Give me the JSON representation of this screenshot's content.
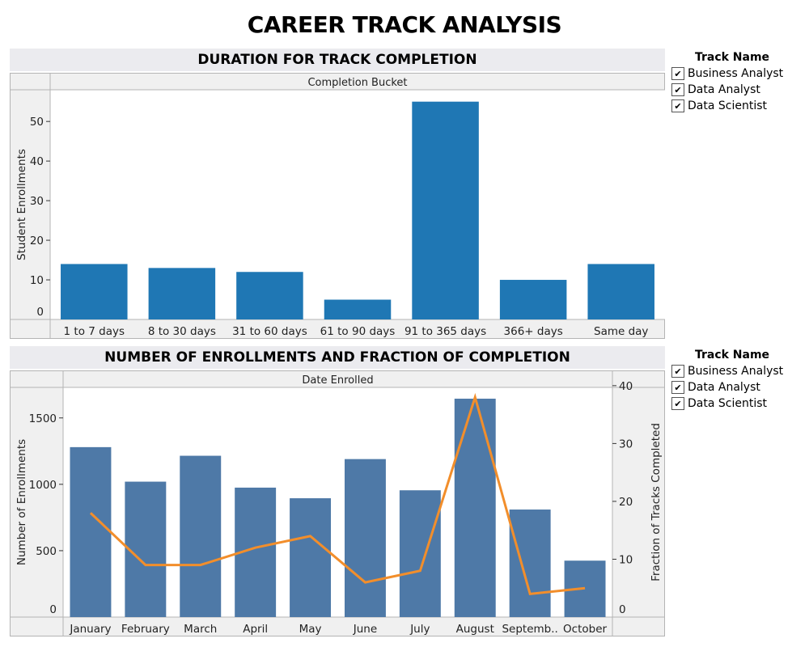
{
  "title": "CAREER TRACK ANALYSIS",
  "legends": [
    {
      "title": "Track Name",
      "items": [
        "Business Analyst",
        "Data Analyst",
        "Data Scientist"
      ]
    },
    {
      "title": "Track Name",
      "items": [
        "Business Analyst",
        "Data Analyst",
        "Data Scientist"
      ]
    }
  ],
  "chart_data": [
    {
      "type": "bar",
      "title": "DURATION FOR TRACK COMPLETION",
      "group_header": "Completion Bucket",
      "ylabel": "Student Enrollments",
      "categories": [
        "1 to 7 days",
        "8 to 30 days",
        "31 to 60 days",
        "61 to 90 days",
        "91 to 365 days",
        "366+ days",
        "Same day"
      ],
      "values": [
        14,
        13,
        12,
        5,
        55,
        10,
        14
      ],
      "yticks": [
        0,
        10,
        20,
        30,
        40,
        50
      ],
      "ylim": [
        0,
        58
      ],
      "color": "#1f77b4",
      "grid": false
    },
    {
      "type": "bar+line",
      "title": "NUMBER OF ENROLLMENTS AND FRACTION OF COMPLETION",
      "group_header": "Date Enrolled",
      "ylabel": "Number of Enrollments",
      "y2label": "Fraction of Tracks Completed",
      "categories": [
        "January",
        "February",
        "March",
        "April",
        "May",
        "June",
        "July",
        "August",
        "Septemb..",
        "October"
      ],
      "series": [
        {
          "type": "bar",
          "axis": "left",
          "color": "#4e79a7",
          "values": [
            1280,
            1020,
            1215,
            975,
            895,
            1190,
            955,
            1645,
            810,
            425
          ]
        },
        {
          "type": "line",
          "axis": "right",
          "color": "#f28e2b",
          "values": [
            18,
            9,
            9,
            12,
            14,
            6,
            8,
            38,
            4,
            5
          ]
        }
      ],
      "yticks": [
        0,
        500,
        1000,
        1500
      ],
      "y2ticks": [
        0,
        10,
        20,
        30,
        40
      ],
      "ylim": [
        0,
        1730
      ],
      "y2lim": [
        0,
        39.7
      ],
      "grid": false
    }
  ]
}
